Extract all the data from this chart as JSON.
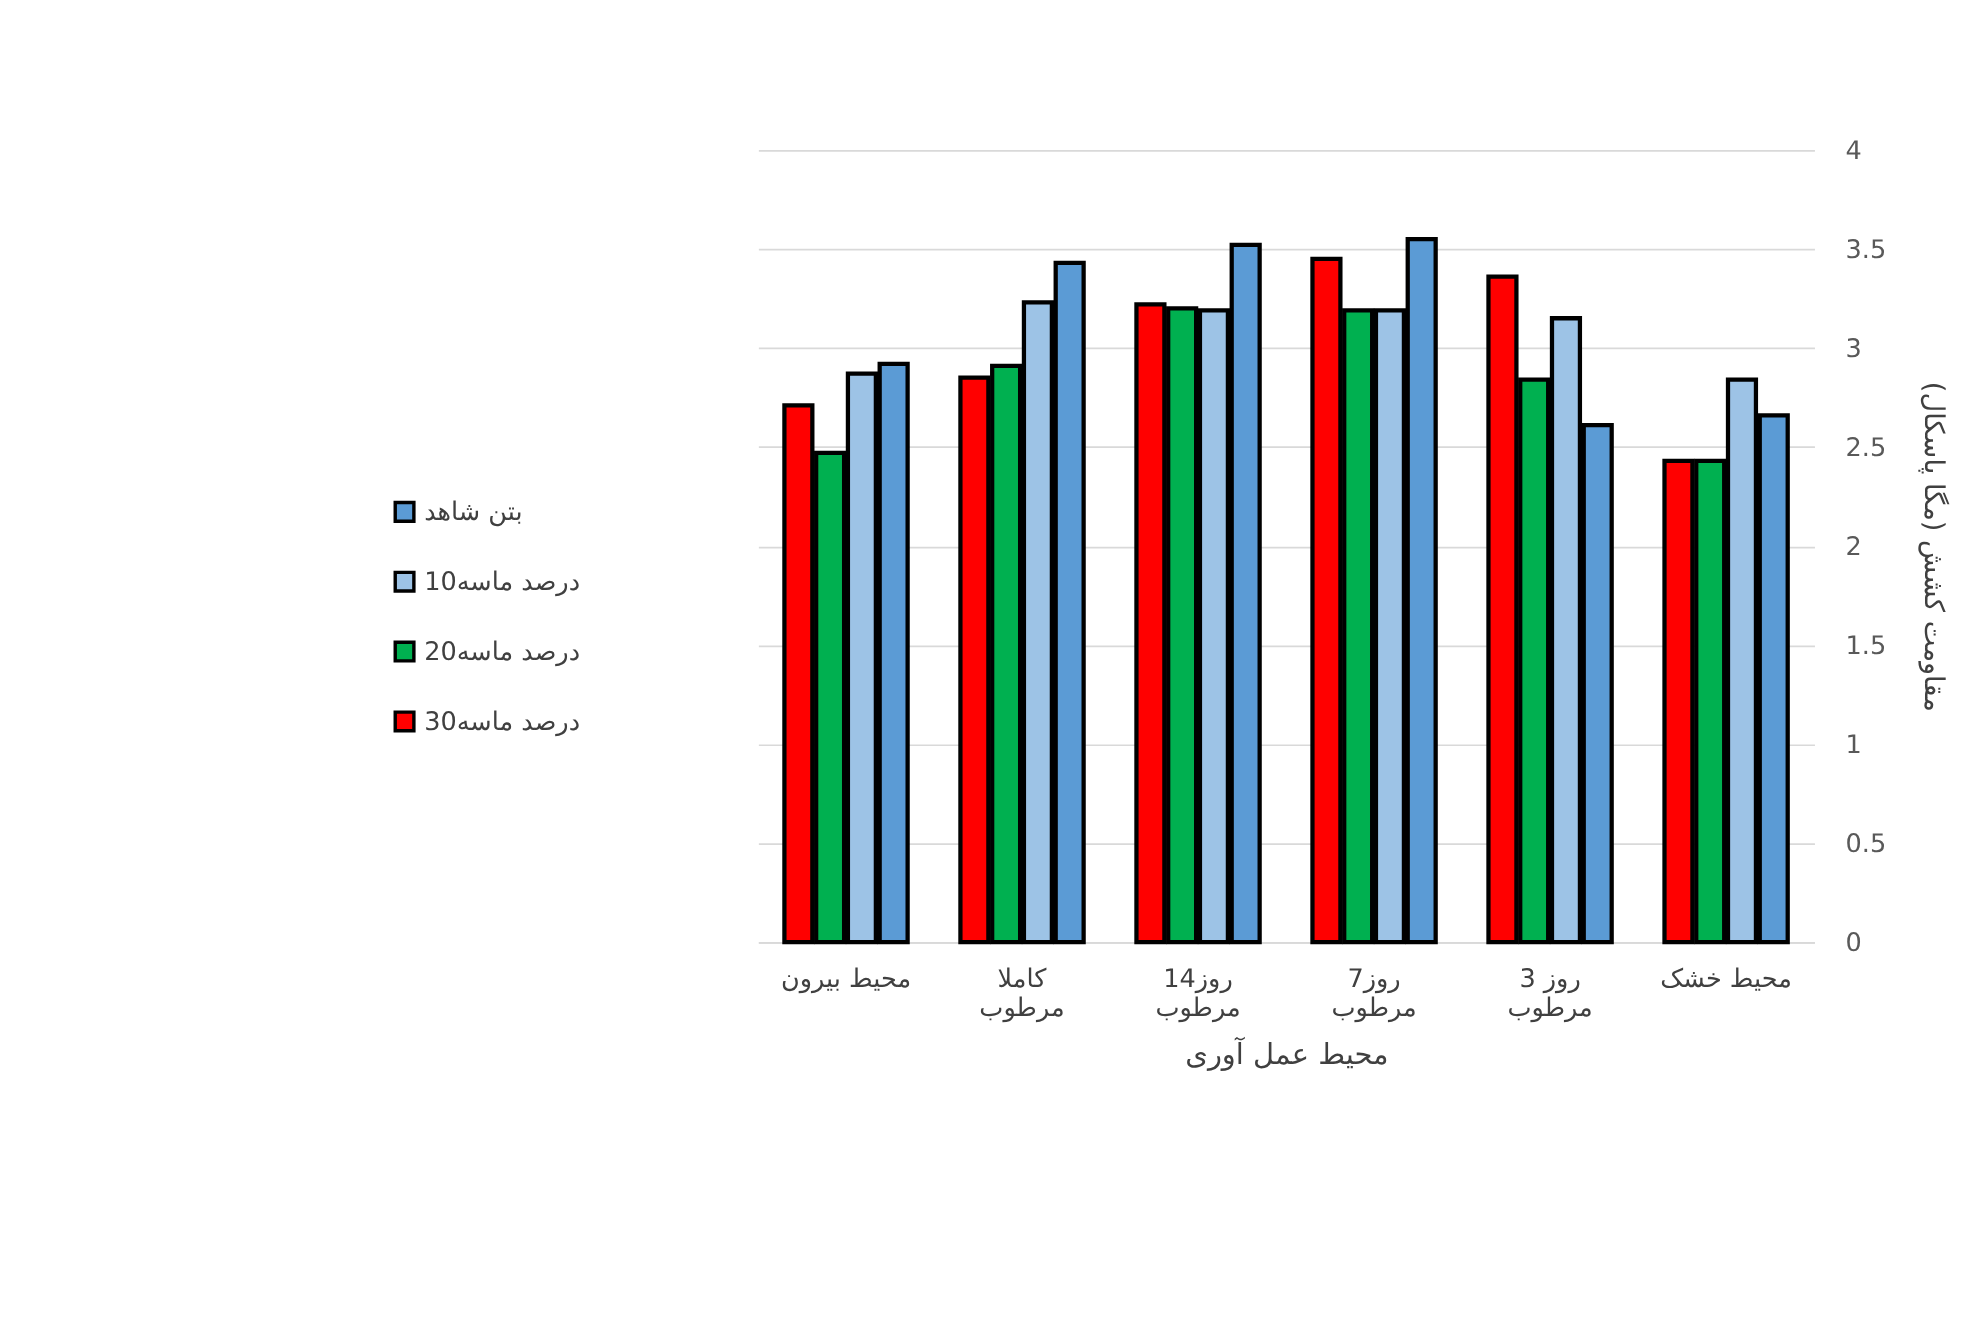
{
  "chart_data": {
    "type": "bar",
    "xlabel": "محیط عمل آوری",
    "ylabel": "مقاومت کشش (مگا پاسکال)",
    "categories": [
      "محیط بیرون",
      "کاملا\nمرطوب",
      "14روز\nمرطوب",
      "7روز\nمرطوب",
      "3 روز\nمرطوب",
      "محیط خشک"
    ],
    "series": [
      {
        "name": "30درصد ماسه",
        "color": "#ff0000",
        "values": [
          2.71,
          2.85,
          3.22,
          3.45,
          3.36,
          2.43
        ]
      },
      {
        "name": "20درصد ماسه",
        "color": "#00b050",
        "values": [
          2.47,
          2.91,
          3.2,
          3.19,
          2.84,
          2.43
        ]
      },
      {
        "name": "10درصد ماسه",
        "color": "#9dc3e6",
        "values": [
          2.87,
          3.23,
          3.19,
          3.19,
          3.15,
          2.84
        ]
      },
      {
        "name": "بتن شاهد",
        "color": "#5b9bd5",
        "values": [
          2.92,
          3.43,
          3.52,
          3.55,
          2.61,
          2.66
        ]
      }
    ],
    "ylim": [
      0,
      4
    ],
    "yticks": [
      0,
      0.5,
      1,
      1.5,
      2,
      2.5,
      3,
      3.5,
      4
    ],
    "grid": "y",
    "legend": "left"
  }
}
